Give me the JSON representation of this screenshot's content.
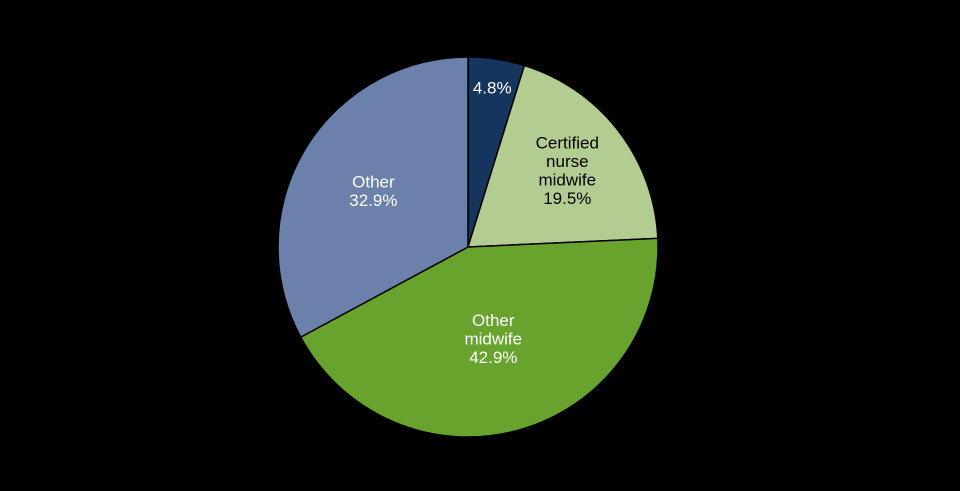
{
  "figure": {
    "background": "#000000",
    "title": "",
    "legend": "none"
  },
  "chart_data": {
    "type": "pie",
    "title": "",
    "units": "percent",
    "categories": [
      "",
      "Certified nurse midwife",
      "Other midwife",
      "Other"
    ],
    "values": [
      4.8,
      19.5,
      42.9,
      32.9
    ],
    "slices": [
      {
        "id": "navy",
        "label": "",
        "pct_text": "4.8%",
        "value": 4.8,
        "color": "#16355e",
        "text_color": "#ffffff",
        "label_lines": [
          "4.8%"
        ],
        "label_r": 0.85
      },
      {
        "id": "certified-nurse-midwife",
        "label": "Certified nurse midwife",
        "pct_text": "19.5%",
        "value": 19.5,
        "color": "#b3cc91",
        "text_color": "#000000",
        "label_lines": [
          "Certified",
          "nurse",
          "midwife",
          "19.5%"
        ],
        "label_r": 0.66
      },
      {
        "id": "other-midwife",
        "label": "Other midwife",
        "pct_text": "42.9%",
        "value": 42.9,
        "color": "#68a32d",
        "text_color": "#ffffff",
        "label_lines": [
          "Other",
          "midwife",
          "42.9%"
        ],
        "label_r": 0.5
      },
      {
        "id": "other",
        "label": "Other",
        "pct_text": "32.9%",
        "value": 32.9,
        "color": "#6b80aa",
        "text_color": "#ffffff",
        "label_lines": [
          "Other",
          "32.9%"
        ],
        "label_r": 0.58
      }
    ],
    "layout": {
      "start_angle_deg": 0,
      "direction": "clockwise",
      "legend": "none",
      "background": "#000000",
      "slice_stroke": "#000000",
      "slice_stroke_width": 1.5,
      "label_line_height": 18.5
    }
  }
}
